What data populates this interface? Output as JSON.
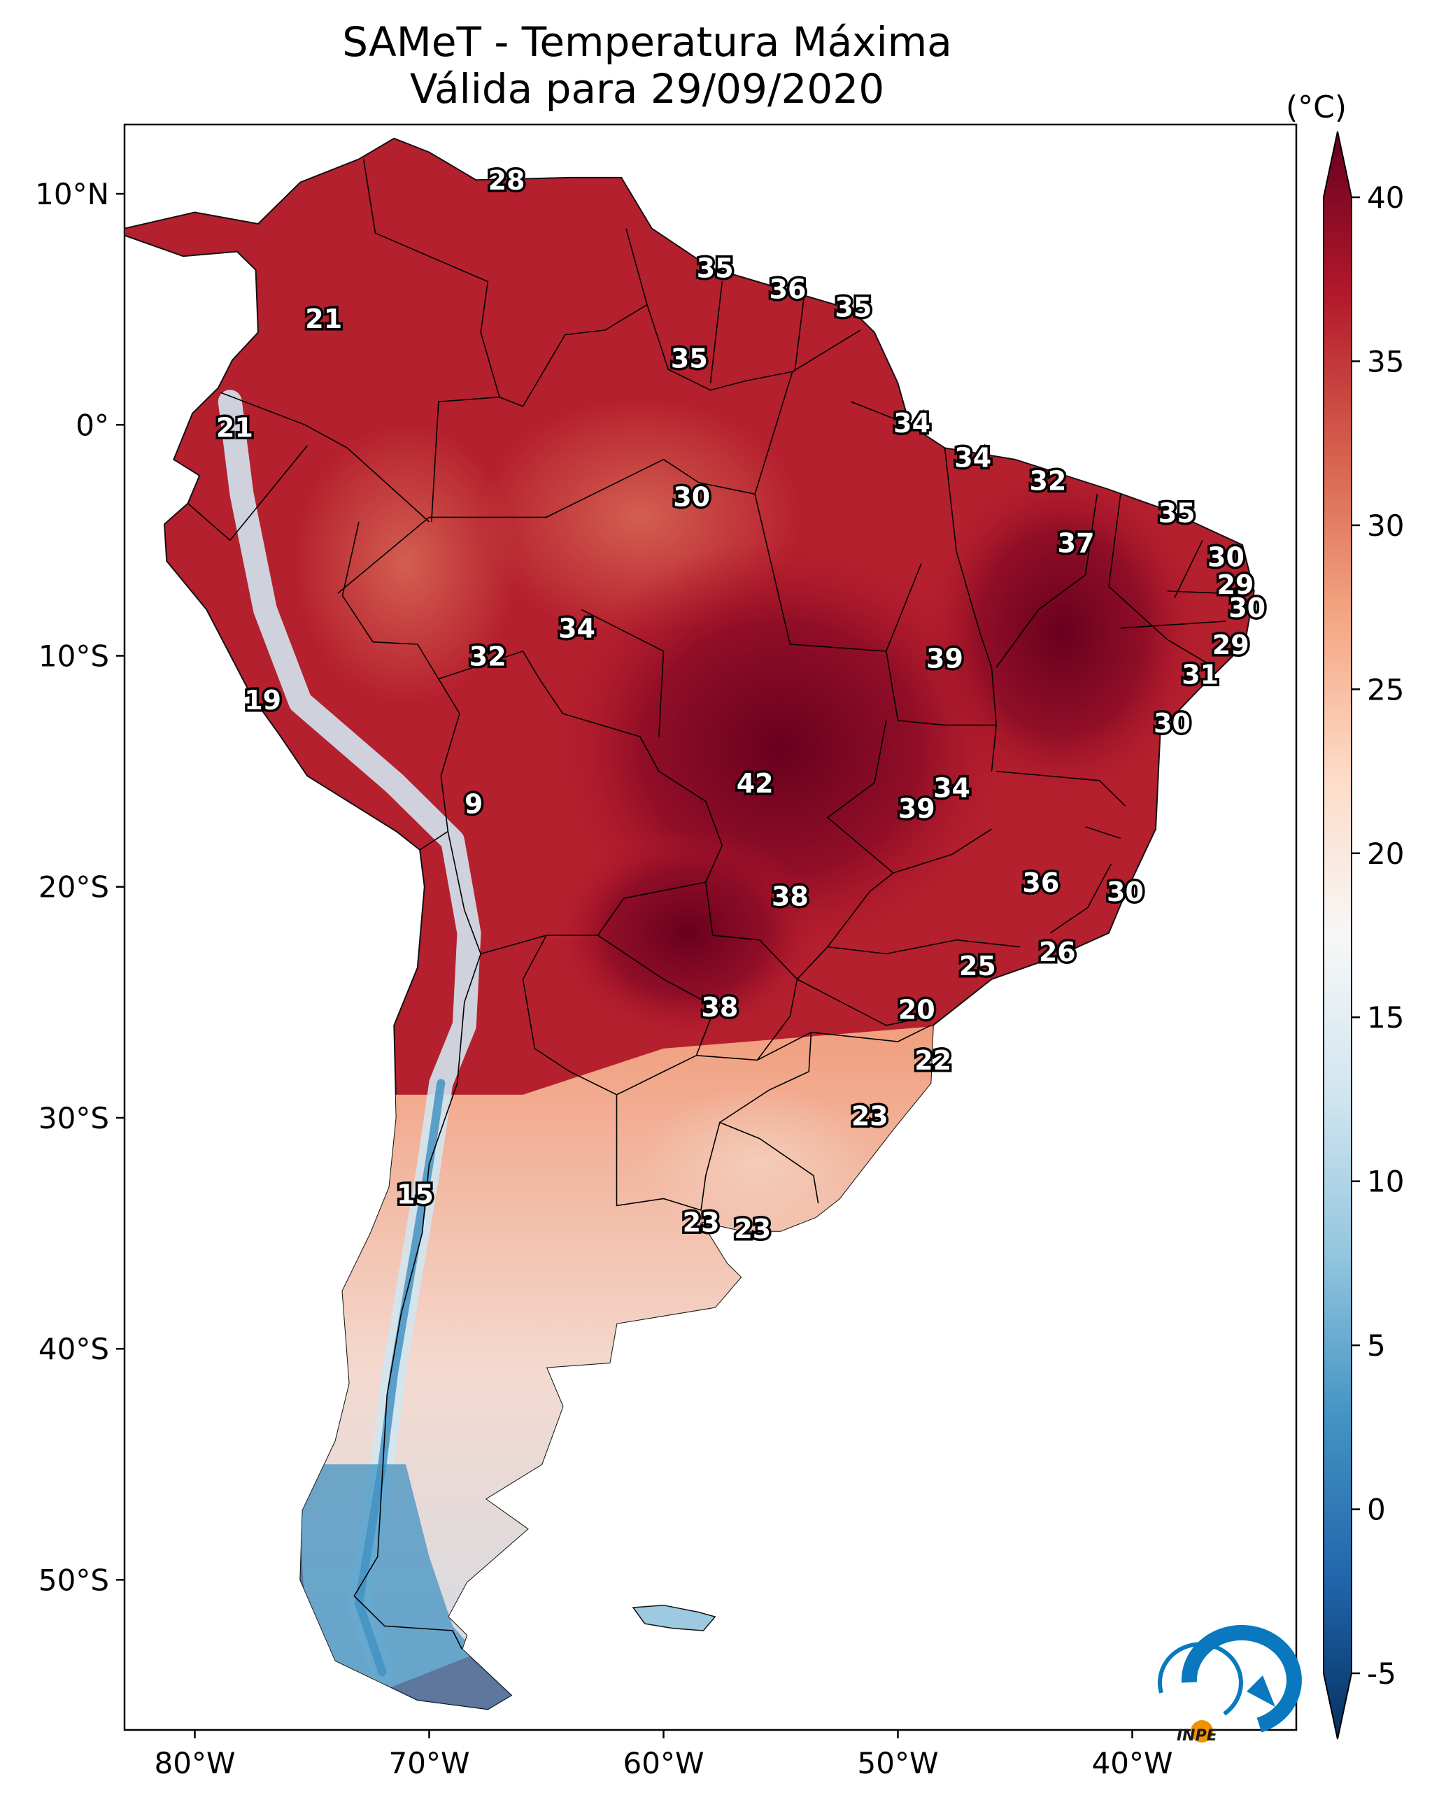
{
  "header": {
    "title_line1": "SAMeT - Temperatura Máxima",
    "title_line2": "Válida para 29/09/2020"
  },
  "map": {
    "lat_labels": [
      "10°N",
      "0°",
      "10°S",
      "20°S",
      "30°S",
      "40°S",
      "50°S"
    ],
    "lon_labels": [
      "80°W",
      "70°W",
      "60°W",
      "50°W",
      "40°W"
    ],
    "extent": {
      "lon_min": -83,
      "lon_max": -33,
      "lat_min": -56.5,
      "lat_max": 13
    },
    "field": "Temperatura Máxima",
    "colors": {
      "hot": "#67001f",
      "warm": "#d6604d",
      "neutral": "#f7f7f7",
      "cool": "#92c5de",
      "cold": "#053061"
    }
  },
  "station_values": [
    {
      "v": "28",
      "lat": 10.5,
      "lon": -66.7
    },
    {
      "v": "35",
      "lat": 6.7,
      "lon": -57.8
    },
    {
      "v": "36",
      "lat": 5.8,
      "lon": -54.7
    },
    {
      "v": "35",
      "lat": 5.0,
      "lon": -51.9
    },
    {
      "v": "21",
      "lat": 4.5,
      "lon": -74.5
    },
    {
      "v": "35",
      "lat": 2.8,
      "lon": -58.9
    },
    {
      "v": "34",
      "lat": 0.0,
      "lon": -49.4
    },
    {
      "v": "21",
      "lat": -0.2,
      "lon": -78.3
    },
    {
      "v": "34",
      "lat": -1.5,
      "lon": -46.8
    },
    {
      "v": "32",
      "lat": -2.5,
      "lon": -43.6
    },
    {
      "v": "30",
      "lat": -3.2,
      "lon": -58.8
    },
    {
      "v": "35",
      "lat": -3.9,
      "lon": -38.1
    },
    {
      "v": "37",
      "lat": -5.2,
      "lon": -42.4
    },
    {
      "v": "30",
      "lat": -5.8,
      "lon": -36.0
    },
    {
      "v": "29",
      "lat": -7.0,
      "lon": -35.6
    },
    {
      "v": "30",
      "lat": -8.0,
      "lon": -35.1
    },
    {
      "v": "34",
      "lat": -8.9,
      "lon": -63.7
    },
    {
      "v": "32",
      "lat": -10.1,
      "lon": -67.5
    },
    {
      "v": "29",
      "lat": -9.6,
      "lon": -35.8
    },
    {
      "v": "39",
      "lat": -10.2,
      "lon": -48.0
    },
    {
      "v": "31",
      "lat": -10.9,
      "lon": -37.1
    },
    {
      "v": "19",
      "lat": -12.0,
      "lon": -77.1
    },
    {
      "v": "30",
      "lat": -13.0,
      "lon": -38.3
    },
    {
      "v": "42",
      "lat": -15.6,
      "lon": -56.1
    },
    {
      "v": "34",
      "lat": -15.8,
      "lon": -47.7
    },
    {
      "v": "39",
      "lat": -16.7,
      "lon": -49.2
    },
    {
      "v": "9",
      "lat": -16.5,
      "lon": -68.1
    },
    {
      "v": "36",
      "lat": -19.9,
      "lon": -43.9
    },
    {
      "v": "30",
      "lat": -20.3,
      "lon": -40.3
    },
    {
      "v": "38",
      "lat": -20.5,
      "lon": -54.6
    },
    {
      "v": "26",
      "lat": -22.9,
      "lon": -43.2
    },
    {
      "v": "25",
      "lat": -23.5,
      "lon": -46.6
    },
    {
      "v": "38",
      "lat": -25.3,
      "lon": -57.6
    },
    {
      "v": "20",
      "lat": -25.4,
      "lon": -49.2
    },
    {
      "v": "22",
      "lat": -27.6,
      "lon": -48.5
    },
    {
      "v": "23",
      "lat": -30.0,
      "lon": -51.2
    },
    {
      "v": "15",
      "lat": -33.4,
      "lon": -70.6
    },
    {
      "v": "23",
      "lat": -34.6,
      "lon": -58.4
    },
    {
      "v": "23",
      "lat": -34.9,
      "lon": -56.2
    }
  ],
  "colorbar": {
    "unit": "(°C)",
    "min": -5,
    "max": 40,
    "extend": "both",
    "ticks": [
      "40",
      "35",
      "30",
      "25",
      "20",
      "15",
      "10",
      "5",
      "0",
      "-5"
    ],
    "stops": [
      "#053061",
      "#2166ac",
      "#4393c3",
      "#92c5de",
      "#d1e5f0",
      "#f7f7f7",
      "#fddbc7",
      "#f4a582",
      "#d6604d",
      "#b2182b",
      "#67001f"
    ]
  },
  "logo": {
    "text": "INPE"
  }
}
